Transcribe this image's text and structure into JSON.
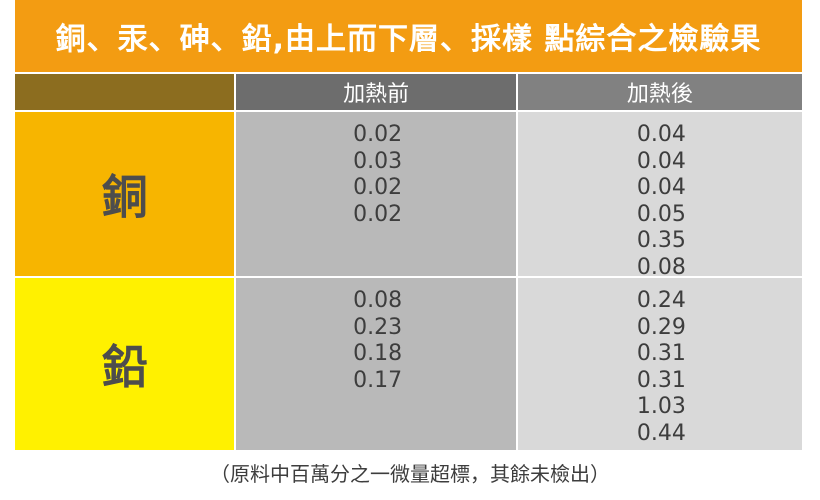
{
  "title": "銅、汞、砷、鉛,由上而下層、採樣 點綜合之檢驗果",
  "headers": {
    "before": "加熱前",
    "after": "加熱後"
  },
  "rows": [
    {
      "metal": "銅",
      "before": [
        "0.02",
        "0.03",
        "0.02",
        "0.02"
      ],
      "after": [
        "0.04",
        "0.04",
        "0.04",
        "0.05",
        "0.35",
        "0.08"
      ]
    },
    {
      "metal": "鉛",
      "before": [
        "0.08",
        "0.23",
        "0.18",
        "0.17"
      ],
      "after": [
        "0.24",
        "0.29",
        "0.31",
        "0.31",
        "1.03",
        "0.44"
      ]
    }
  ],
  "footnote": "（原料中百萬分之一微量超標，其餘未檢出）",
  "colors": {
    "title_bg": "#f39c12",
    "copper_bg": "#f7b500",
    "lead_bg": "#fff100",
    "before_bg": "#b9b9b9",
    "after_bg": "#d9d9d9"
  }
}
